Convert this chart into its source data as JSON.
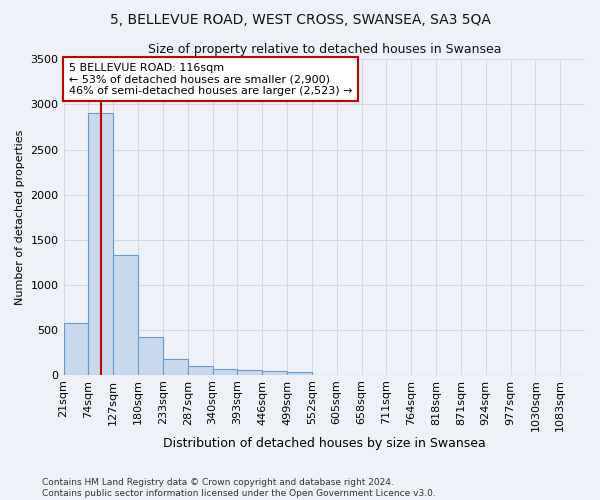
{
  "title1": "5, BELLEVUE ROAD, WEST CROSS, SWANSEA, SA3 5QA",
  "title2": "Size of property relative to detached houses in Swansea",
  "xlabel": "Distribution of detached houses by size in Swansea",
  "ylabel": "Number of detached properties",
  "footnote": "Contains HM Land Registry data © Crown copyright and database right 2024.\nContains public sector information licensed under the Open Government Licence v3.0.",
  "bin_labels": [
    "21sqm",
    "74sqm",
    "127sqm",
    "180sqm",
    "233sqm",
    "287sqm",
    "340sqm",
    "393sqm",
    "446sqm",
    "499sqm",
    "552sqm",
    "605sqm",
    "658sqm",
    "711sqm",
    "764sqm",
    "818sqm",
    "871sqm",
    "924sqm",
    "977sqm",
    "1030sqm",
    "1083sqm"
  ],
  "bar_values": [
    570,
    2910,
    1330,
    415,
    175,
    95,
    65,
    55,
    45,
    35,
    0,
    0,
    0,
    0,
    0,
    0,
    0,
    0,
    0,
    0,
    0
  ],
  "bar_color": "#c8d9ee",
  "bar_edge_color": "#6699cc",
  "annotation_text": "5 BELLEVUE ROAD: 116sqm\n← 53% of detached houses are smaller (2,900)\n46% of semi-detached houses are larger (2,523) →",
  "annotation_box_color": "#ffffff",
  "annotation_box_edge": "#cc0000",
  "vline_color": "#cc0000",
  "ylim": [
    0,
    3500
  ],
  "yticks": [
    0,
    500,
    1000,
    1500,
    2000,
    2500,
    3000,
    3500
  ],
  "background_color": "#eef2f8",
  "grid_color": "#d0d8e8",
  "title1_fontsize": 10,
  "title2_fontsize": 9,
  "xlabel_fontsize": 9,
  "ylabel_fontsize": 8,
  "tick_fontsize": 8,
  "annotation_fontsize": 8,
  "footnote_fontsize": 6.5,
  "vline_x_idx": 1.5
}
